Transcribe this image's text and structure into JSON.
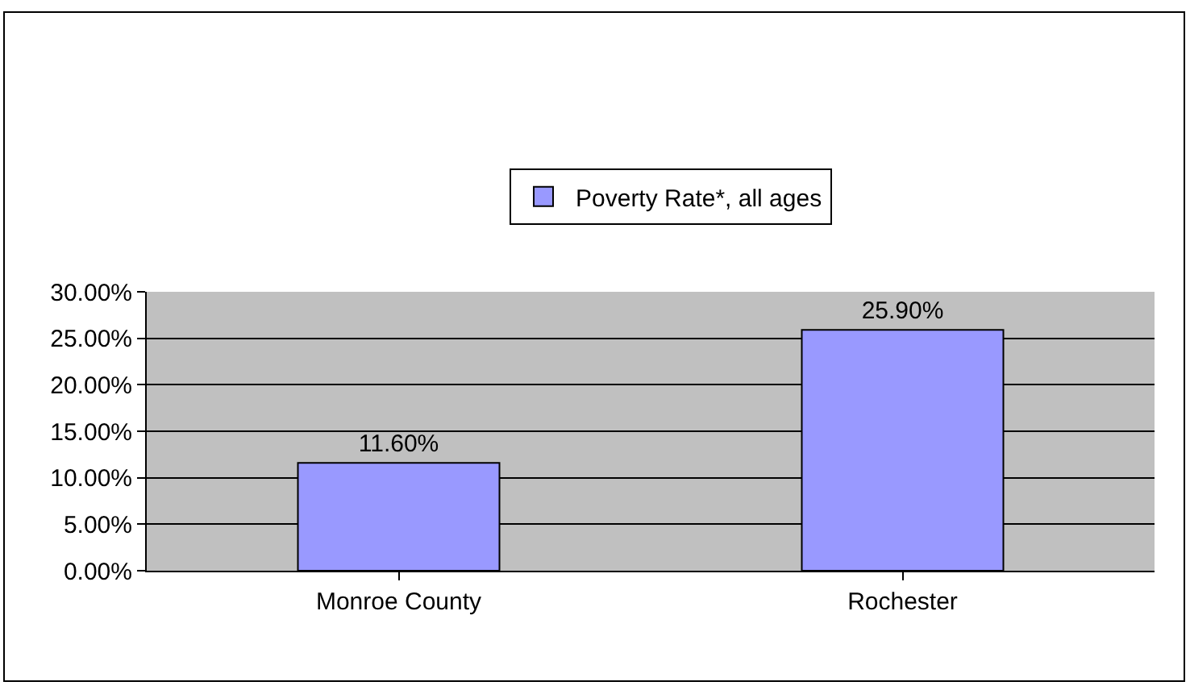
{
  "chart_data": {
    "type": "bar",
    "categories": [
      "Monroe County",
      "Rochester"
    ],
    "series": [
      {
        "name": "Poverty Rate*, all ages",
        "color": "#9999ff",
        "values": [
          11.6,
          25.9
        ],
        "value_labels": [
          "11.60%",
          "25.90%"
        ]
      }
    ],
    "ylim": [
      0,
      30
    ],
    "yticks": [
      {
        "value": 0,
        "label": "0.00%"
      },
      {
        "value": 5,
        "label": "5.00%"
      },
      {
        "value": 10,
        "label": "10.00%"
      },
      {
        "value": 15,
        "label": "15.00%"
      },
      {
        "value": 20,
        "label": "20.00%"
      },
      {
        "value": 25,
        "label": "25.00%"
      },
      {
        "value": 30,
        "label": "30.00%"
      }
    ],
    "grid": "y",
    "legend": "top"
  }
}
